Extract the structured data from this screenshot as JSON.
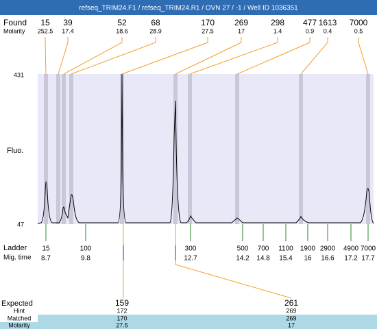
{
  "header": {
    "title": "refseq_TRIM24.F1 / refseq_TRIM24.R1 / OVN 27 / -1 / Well ID 1036351"
  },
  "found": {
    "label": "Found",
    "molarity_label": "Molarity",
    "sizes": [
      15,
      39,
      52,
      68,
      170,
      269,
      298,
      477,
      1613,
      7000
    ],
    "molarity": [
      252.5,
      17.4,
      18.6,
      28.9,
      27.5,
      17,
      1.4,
      0.9,
      0.4,
      0.5
    ]
  },
  "plot": {
    "y_label": "Fluo.",
    "y_max": 431,
    "y_min": 47
  },
  "ladder": {
    "label": "Ladder",
    "time_label": "Mig. time",
    "sizes": [
      15,
      100,
      300,
      500,
      700,
      1100,
      1900,
      2900,
      4900,
      7000
    ],
    "times": [
      8.7,
      9.8,
      12.7,
      14.2,
      14.8,
      15.4,
      16,
      16.6,
      17.2,
      17.7
    ]
  },
  "expected": {
    "label": "Expected",
    "hint_label": "Hint",
    "matched_label": "Matched",
    "molarity_label": "Molarity",
    "peaks": [
      {
        "expected": 159,
        "hint": 172,
        "matched": 170,
        "molarity": 27.5
      },
      {
        "expected": 261,
        "hint": 269,
        "matched": 269,
        "molarity": 17
      }
    ]
  }
}
